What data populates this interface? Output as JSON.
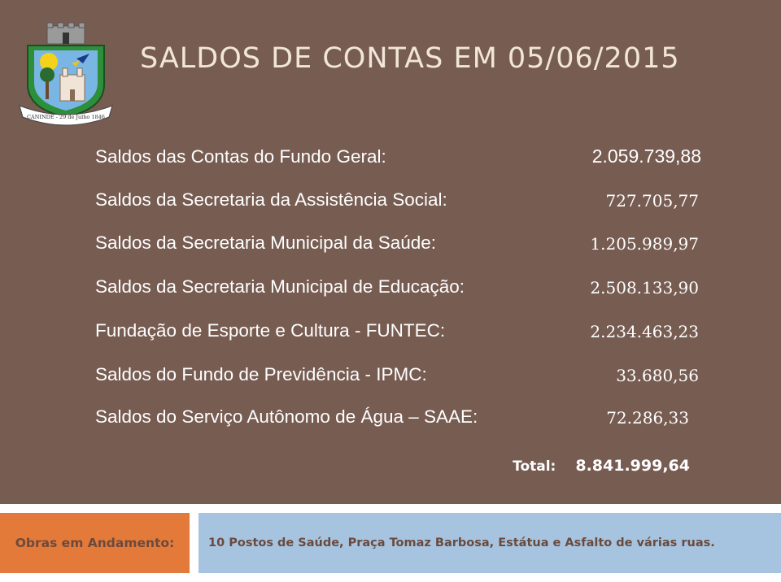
{
  "slide": {
    "title": "SALDOS DE CONTAS EM 05/06/2015",
    "crest_ribbon_text": "CANINDÉ - 29 de Julho 1846",
    "accounts": [
      {
        "label": "Saldos das Contas do Fundo Geral:",
        "value": "2.059.739,88"
      },
      {
        "label": "Saldos da Secretaria da Assistência Social:",
        "value": "727.705,77"
      },
      {
        "label": "Saldos da Secretaria Municipal da Saúde:",
        "value": "1.205.989,97"
      },
      {
        "label": "Saldos da Secretaria Municipal de Educação:",
        "value": "2.508.133,90"
      },
      {
        "label": "Fundação de Esporte e Cultura - FUNTEC:",
        "value": "2.234.463,23"
      },
      {
        "label": "Saldos do Fundo de Previdência - IPMC:",
        "value": "33.680,56"
      },
      {
        "label": "Saldos do Serviço Autônomo de Água – SAAE:",
        "value": "72.286,33"
      }
    ],
    "total": {
      "label": "Total:",
      "value": "8.841.999,64"
    }
  },
  "footer": {
    "left_label": "Obras em Andamento:",
    "right_text": "10 Postos de Saúde, Praça Tomaz Barbosa, Estátua e Asfalto de várias ruas."
  },
  "colors": {
    "slide_bg": "#775c52",
    "title": "#f1e6d8",
    "footer_left_bg": "#e47a3a",
    "footer_right_bg": "#a6c4e0",
    "footer_text": "#6b4a3e"
  }
}
